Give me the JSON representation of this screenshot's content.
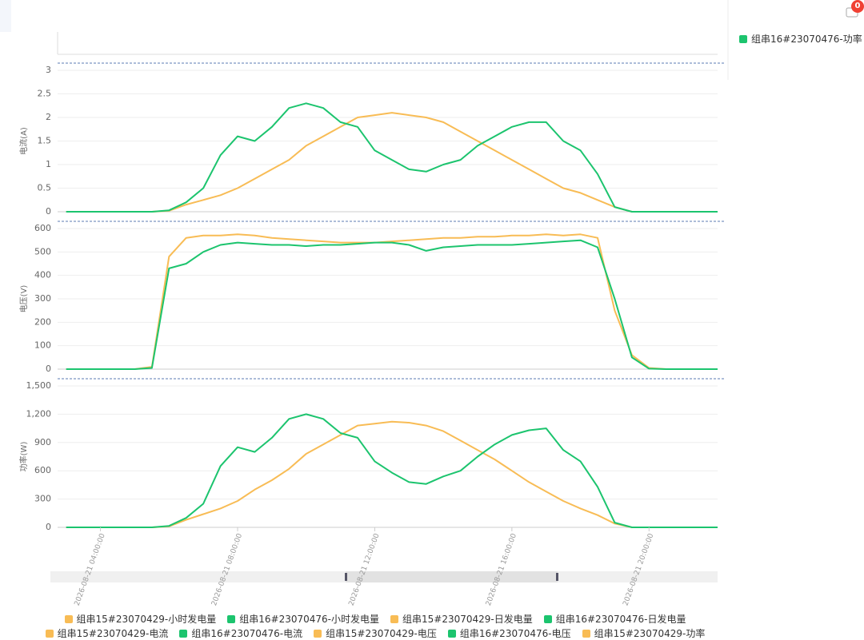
{
  "badge": {
    "count": 0
  },
  "time_axis": {
    "x": [
      "2026-08-21 03:00:00",
      "2026-08-21 03:30:00",
      "2026-08-21 04:00:00",
      "2026-08-21 04:30:00",
      "2026-08-21 05:00:00",
      "2026-08-21 05:30:00",
      "2026-08-21 06:00:00",
      "2026-08-21 06:30:00",
      "2026-08-21 07:00:00",
      "2026-08-21 07:30:00",
      "2026-08-21 08:00:00",
      "2026-08-21 08:30:00",
      "2026-08-21 09:00:00",
      "2026-08-21 09:30:00",
      "2026-08-21 10:00:00",
      "2026-08-21 10:30:00",
      "2026-08-21 11:00:00",
      "2026-08-21 11:30:00",
      "2026-08-21 12:00:00",
      "2026-08-21 12:30:00",
      "2026-08-21 13:00:00",
      "2026-08-21 13:30:00",
      "2026-08-21 14:00:00",
      "2026-08-21 14:30:00",
      "2026-08-21 15:00:00",
      "2026-08-21 15:30:00",
      "2026-08-21 16:00:00",
      "2026-08-21 16:30:00",
      "2026-08-21 17:00:00",
      "2026-08-21 17:30:00",
      "2026-08-21 18:00:00",
      "2026-08-21 18:30:00",
      "2026-08-21 19:00:00",
      "2026-08-21 19:30:00",
      "2026-08-21 20:00:00",
      "2026-08-21 20:30:00",
      "2026-08-21 21:00:00",
      "2026-08-21 21:30:00",
      "2026-08-21 22:00:00"
    ],
    "xlim": [
      "2026-08-21 02:45:00",
      "2026-08-21 22:00:00"
    ],
    "xticks": [
      "2026-08-21 04:00:00",
      "2026-08-21 08:00:00",
      "2026-08-21 12:00:00",
      "2026-08-21 16:00:00",
      "2026-08-21 20:00:00"
    ]
  },
  "chart_data": [
    {
      "type": "line",
      "series": [
        {
          "name": "组串15#23070429-小时发电量",
          "color": "#f8bc55",
          "values": []
        },
        {
          "name": "组串16#23070476-小时发电量",
          "color": "#1cc46e",
          "values": []
        },
        {
          "name": "组串15#23070429-日发电量",
          "color": "#f8bc55",
          "values": []
        },
        {
          "name": "组串16#23070476-日发电量",
          "color": "#1cc46e",
          "values": []
        }
      ]
    },
    {
      "type": "line",
      "ylabel": "电流(A)",
      "ylim": [
        0,
        3
      ],
      "yticks": [
        0,
        0.5,
        1,
        1.5,
        2,
        2.5,
        3
      ],
      "grid": true,
      "series": [
        {
          "name": "组串15#23070429-电流",
          "color": "#f8bc55",
          "values": [
            0,
            0,
            0,
            0,
            0,
            0,
            0.02,
            0.15,
            0.25,
            0.35,
            0.5,
            0.7,
            0.9,
            1.1,
            1.4,
            1.6,
            1.8,
            2.0,
            2.05,
            2.1,
            2.05,
            2.0,
            1.9,
            1.7,
            1.5,
            1.3,
            1.1,
            0.9,
            0.7,
            0.5,
            0.4,
            0.25,
            0.1,
            0,
            0,
            0,
            0,
            0,
            0
          ]
        },
        {
          "name": "组串16#23070476-电流",
          "color": "#1cc46e",
          "values": [
            0,
            0,
            0,
            0,
            0,
            0,
            0.03,
            0.2,
            0.5,
            1.2,
            1.6,
            1.5,
            1.8,
            2.2,
            2.3,
            2.2,
            1.9,
            1.8,
            1.3,
            1.1,
            0.9,
            0.85,
            1.0,
            1.1,
            1.4,
            1.6,
            1.8,
            1.9,
            1.9,
            1.5,
            1.3,
            0.8,
            0.1,
            0,
            0,
            0,
            0,
            0,
            0
          ]
        }
      ]
    },
    {
      "type": "line",
      "ylabel": "电压(V)",
      "ylim": [
        0,
        600
      ],
      "yticks": [
        0,
        100,
        200,
        300,
        400,
        500,
        600
      ],
      "grid": true,
      "series": [
        {
          "name": "组串15#23070429-电压",
          "color": "#f8bc55",
          "values": [
            0,
            0,
            0,
            0,
            0,
            10,
            480,
            560,
            570,
            570,
            575,
            570,
            560,
            555,
            550,
            545,
            540,
            540,
            540,
            545,
            550,
            555,
            560,
            560,
            565,
            565,
            570,
            570,
            575,
            570,
            575,
            560,
            250,
            60,
            5,
            0,
            0,
            0,
            0
          ]
        },
        {
          "name": "组串16#23070476-电压",
          "color": "#1cc46e",
          "values": [
            0,
            0,
            0,
            0,
            0,
            5,
            430,
            450,
            500,
            530,
            540,
            535,
            530,
            530,
            525,
            530,
            530,
            535,
            540,
            540,
            530,
            505,
            520,
            525,
            530,
            530,
            530,
            535,
            540,
            545,
            550,
            520,
            300,
            50,
            2,
            0,
            0,
            0,
            0
          ]
        }
      ]
    },
    {
      "type": "line",
      "ylabel": "功率(W)",
      "ylim": [
        0,
        1500
      ],
      "yticks": [
        0,
        300,
        600,
        900,
        {
          "value": 1200,
          "label": "1,200"
        },
        {
          "value": 1500,
          "label": "1,500"
        }
      ],
      "grid": true,
      "series": [
        {
          "name": "组串15#23070429-功率",
          "color": "#f8bc55",
          "values": [
            0,
            0,
            0,
            0,
            0,
            0,
            10,
            80,
            140,
            200,
            280,
            400,
            500,
            620,
            780,
            880,
            980,
            1080,
            1100,
            1120,
            1110,
            1080,
            1020,
            920,
            820,
            720,
            600,
            480,
            380,
            280,
            200,
            130,
            40,
            0,
            0,
            0,
            0,
            0,
            0
          ]
        },
        {
          "name": "组串16#23070476-功率",
          "color": "#1cc46e",
          "values": [
            0,
            0,
            0,
            0,
            0,
            0,
            15,
            100,
            250,
            650,
            850,
            800,
            950,
            1150,
            1200,
            1150,
            1000,
            950,
            700,
            580,
            480,
            460,
            540,
            600,
            750,
            880,
            980,
            1030,
            1050,
            820,
            700,
            430,
            50,
            0,
            0,
            0,
            0,
            0,
            0
          ]
        }
      ]
    }
  ]
}
